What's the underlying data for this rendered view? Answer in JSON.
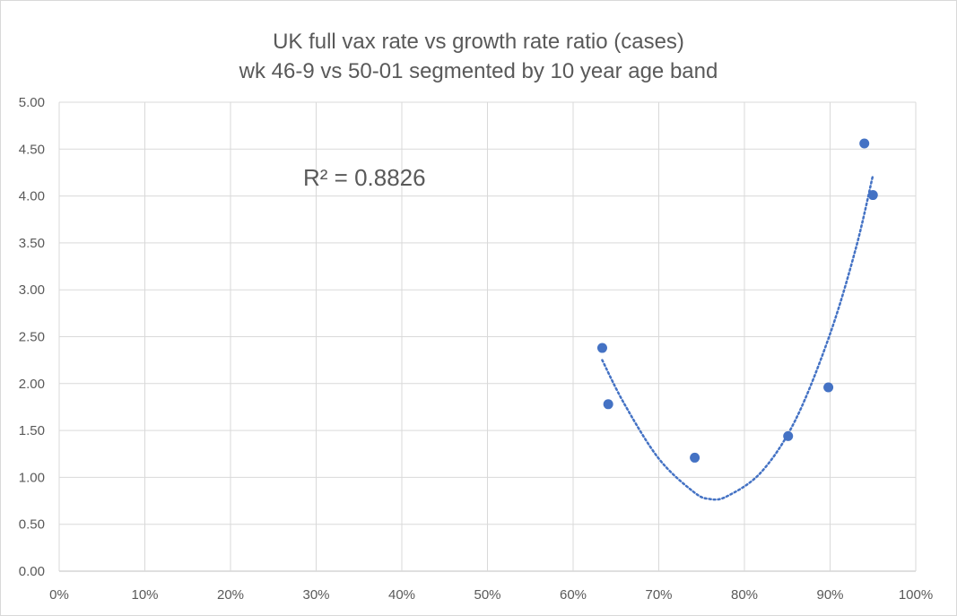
{
  "chart_data": {
    "type": "scatter",
    "title_line1": "UK full vax rate vs growth rate ratio (cases)",
    "title_line2": "wk 46-9 vs 50-01 segmented by 10 year age band",
    "xlim": [
      0,
      1
    ],
    "ylim": [
      0,
      5
    ],
    "x_ticks": [
      0,
      0.1,
      0.2,
      0.3,
      0.4,
      0.5,
      0.6,
      0.7,
      0.8,
      0.9,
      1.0
    ],
    "x_tick_labels": [
      "0%",
      "10%",
      "20%",
      "30%",
      "40%",
      "50%",
      "60%",
      "70%",
      "80%",
      "90%",
      "100%"
    ],
    "y_ticks": [
      0,
      0.5,
      1,
      1.5,
      2,
      2.5,
      3,
      3.5,
      4,
      4.5,
      5
    ],
    "y_tick_labels": [
      "0.00",
      "0.50",
      "1.00",
      "1.50",
      "2.00",
      "2.50",
      "3.00",
      "3.50",
      "4.00",
      "4.50",
      "5.00"
    ],
    "grid": true,
    "points": [
      {
        "x": 0.634,
        "y": 2.38
      },
      {
        "x": 0.641,
        "y": 1.78
      },
      {
        "x": 0.742,
        "y": 1.21
      },
      {
        "x": 0.851,
        "y": 1.44
      },
      {
        "x": 0.898,
        "y": 1.96
      },
      {
        "x": 0.94,
        "y": 4.56
      },
      {
        "x": 0.95,
        "y": 4.01
      }
    ],
    "trendline": {
      "type": "polynomial",
      "points": [
        {
          "x": 0.634,
          "y": 2.25
        },
        {
          "x": 0.66,
          "y": 1.78
        },
        {
          "x": 0.7,
          "y": 1.2
        },
        {
          "x": 0.74,
          "y": 0.85
        },
        {
          "x": 0.759,
          "y": 0.77
        },
        {
          "x": 0.78,
          "y": 0.8
        },
        {
          "x": 0.82,
          "y": 1.06
        },
        {
          "x": 0.86,
          "y": 1.62
        },
        {
          "x": 0.9,
          "y": 2.53
        },
        {
          "x": 0.93,
          "y": 3.44
        },
        {
          "x": 0.95,
          "y": 4.22
        }
      ]
    },
    "r_squared_label": "R² = 0.8826",
    "marker_color": "#4472c4",
    "trendline_color": "#4472c4",
    "grid_color": "#d9d9d9",
    "text_color": "#595959"
  }
}
